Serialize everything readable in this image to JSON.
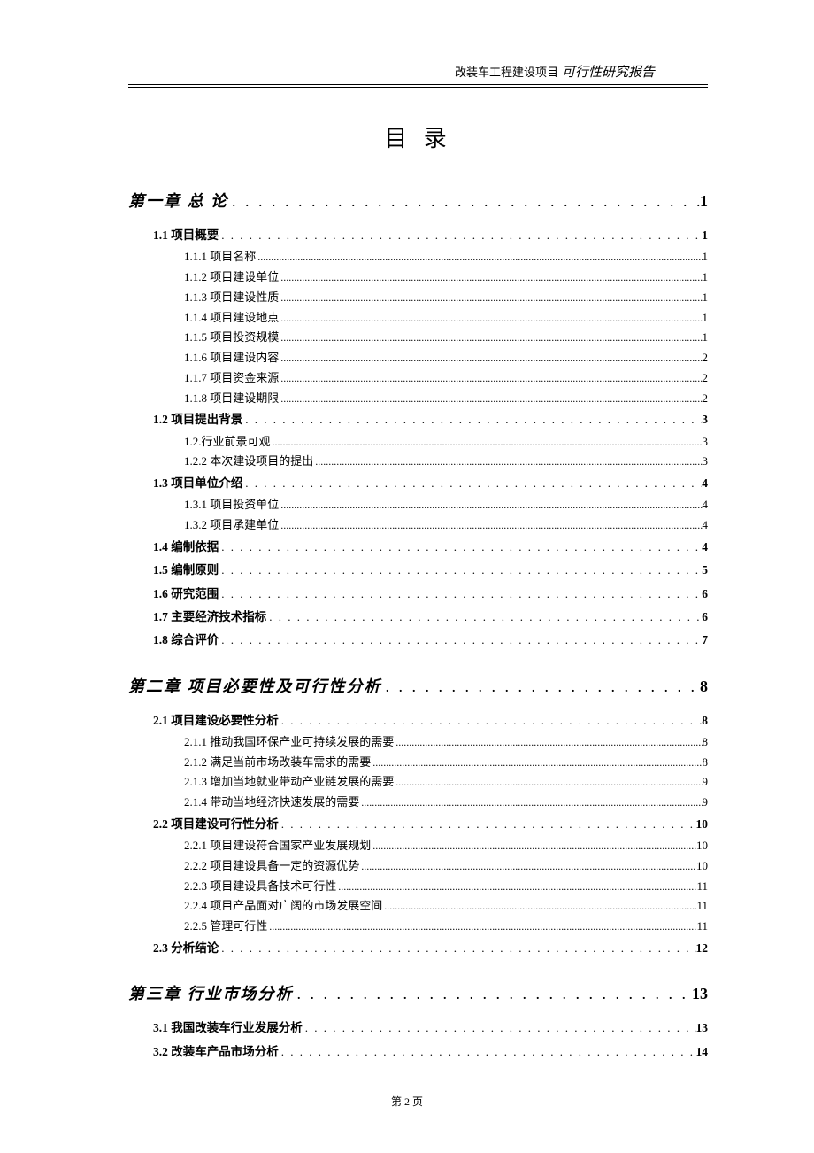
{
  "header": {
    "prefix": "改装车工程建设项目",
    "suffix": "可行性研究报告"
  },
  "title": "目 录",
  "toc": [
    {
      "level": 1,
      "label": "第一章  总  论",
      "page": "1"
    },
    {
      "level": 2,
      "label": "1.1 项目概要",
      "page": "1"
    },
    {
      "level": 3,
      "label": "1.1.1 项目名称",
      "page": "1"
    },
    {
      "level": 3,
      "label": "1.1.2 项目建设单位",
      "page": "1"
    },
    {
      "level": 3,
      "label": "1.1.3 项目建设性质",
      "page": "1"
    },
    {
      "level": 3,
      "label": "1.1.4 项目建设地点",
      "page": "1"
    },
    {
      "level": 3,
      "label": "1.1.5 项目投资规模",
      "page": "1"
    },
    {
      "level": 3,
      "label": "1.1.6 项目建设内容",
      "page": "2"
    },
    {
      "level": 3,
      "label": "1.1.7 项目资金来源",
      "page": "2"
    },
    {
      "level": 3,
      "label": "1.1.8 项目建设期限",
      "page": "2"
    },
    {
      "level": 2,
      "label": "1.2 项目提出背景",
      "page": "3"
    },
    {
      "level": 3,
      "label": "1.2.行业前景可观",
      "page": "3"
    },
    {
      "level": 3,
      "label": "1.2.2 本次建设项目的提出",
      "page": "3"
    },
    {
      "level": 2,
      "label": "1.3 项目单位介绍",
      "page": "4"
    },
    {
      "level": 3,
      "label": "1.3.1 项目投资单位",
      "page": "4"
    },
    {
      "level": 3,
      "label": "1.3.2 项目承建单位",
      "page": "4"
    },
    {
      "level": 2,
      "label": "1.4 编制依据",
      "page": "4"
    },
    {
      "level": 2,
      "label": "1.5 编制原则",
      "page": "5"
    },
    {
      "level": 2,
      "label": "1.6 研究范围",
      "page": "6"
    },
    {
      "level": 2,
      "label": "1.7 主要经济技术指标",
      "page": "6"
    },
    {
      "level": 2,
      "label": "1.8 综合评价",
      "page": "7"
    },
    {
      "level": 1,
      "label": "第二章  项目必要性及可行性分析",
      "page": "8"
    },
    {
      "level": 2,
      "label": "2.1 项目建设必要性分析",
      "page": "8"
    },
    {
      "level": 3,
      "label": "2.1.1 推动我国环保产业可持续发展的需要",
      "page": "8"
    },
    {
      "level": 3,
      "label": "2.1.2 满足当前市场改装车需求的需要",
      "page": "8"
    },
    {
      "level": 3,
      "label": "2.1.3 增加当地就业带动产业链发展的需要",
      "page": "9"
    },
    {
      "level": 3,
      "label": "2.1.4 带动当地经济快速发展的需要",
      "page": "9"
    },
    {
      "level": 2,
      "label": "2.2 项目建设可行性分析",
      "page": "10"
    },
    {
      "level": 3,
      "label": "2.2.1 项目建设符合国家产业发展规划",
      "page": "10"
    },
    {
      "level": 3,
      "label": "2.2.2 项目建设具备一定的资源优势",
      "page": "10"
    },
    {
      "level": 3,
      "label": "2.2.3 项目建设具备技术可行性",
      "page": "11"
    },
    {
      "level": 3,
      "label": "2.2.4 项目产品面对广阔的市场发展空间",
      "page": "11"
    },
    {
      "level": 3,
      "label": "2.2.5 管理可行性",
      "page": "11"
    },
    {
      "level": 2,
      "label": "2.3 分析结论",
      "page": "12"
    },
    {
      "level": 1,
      "label": "第三章  行业市场分析",
      "page": "13"
    },
    {
      "level": 2,
      "label": "3.1 我国改装车行业发展分析",
      "page": "13"
    },
    {
      "level": 2,
      "label": "3.2 改装车产品市场分析",
      "page": "14"
    }
  ],
  "footer": "第 2 页"
}
